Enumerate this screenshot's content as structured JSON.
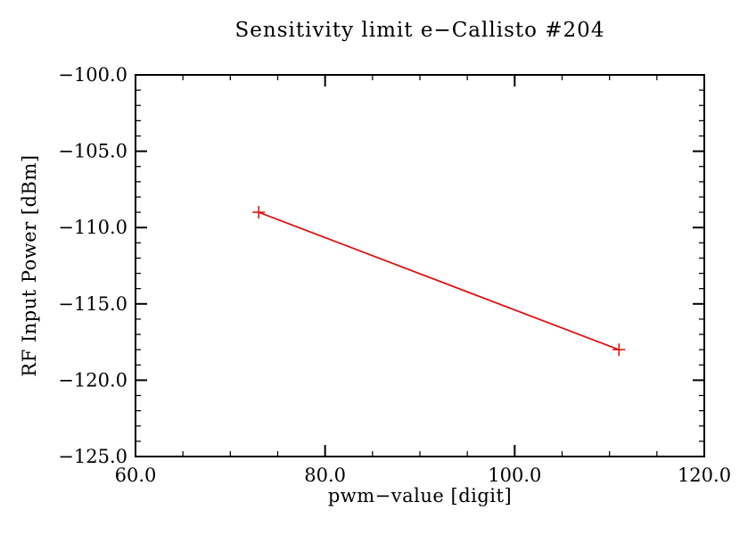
{
  "page": {
    "background": "#ffffff"
  },
  "chart_data": {
    "type": "line",
    "title": "Sensitivity limit e−Callisto #204",
    "xlabel": "pwm−value [digit]",
    "ylabel": "RF Input Power [dBm]",
    "xlim": [
      60,
      120
    ],
    "ylim": [
      -125,
      -100
    ],
    "xticks": [
      60,
      80,
      100,
      120
    ],
    "xtick_labels": [
      "60.0",
      "80.0",
      "100.0",
      "120.0"
    ],
    "yticks": [
      -100,
      -105,
      -110,
      -115,
      -120,
      -125
    ],
    "ytick_labels": [
      "−100.0",
      "−105.0",
      "−110.0",
      "−115.0",
      "−120.0",
      "−125.0"
    ],
    "x_minor_step": 5,
    "y_minor_step": 1,
    "grid": false,
    "legend": false,
    "axis_color": "#000000",
    "line_color": "#dc1414",
    "series": [
      {
        "name": "sensitivity-limit",
        "marker": "plus",
        "x": [
          73,
          111
        ],
        "y": [
          -109,
          -118
        ]
      }
    ]
  }
}
